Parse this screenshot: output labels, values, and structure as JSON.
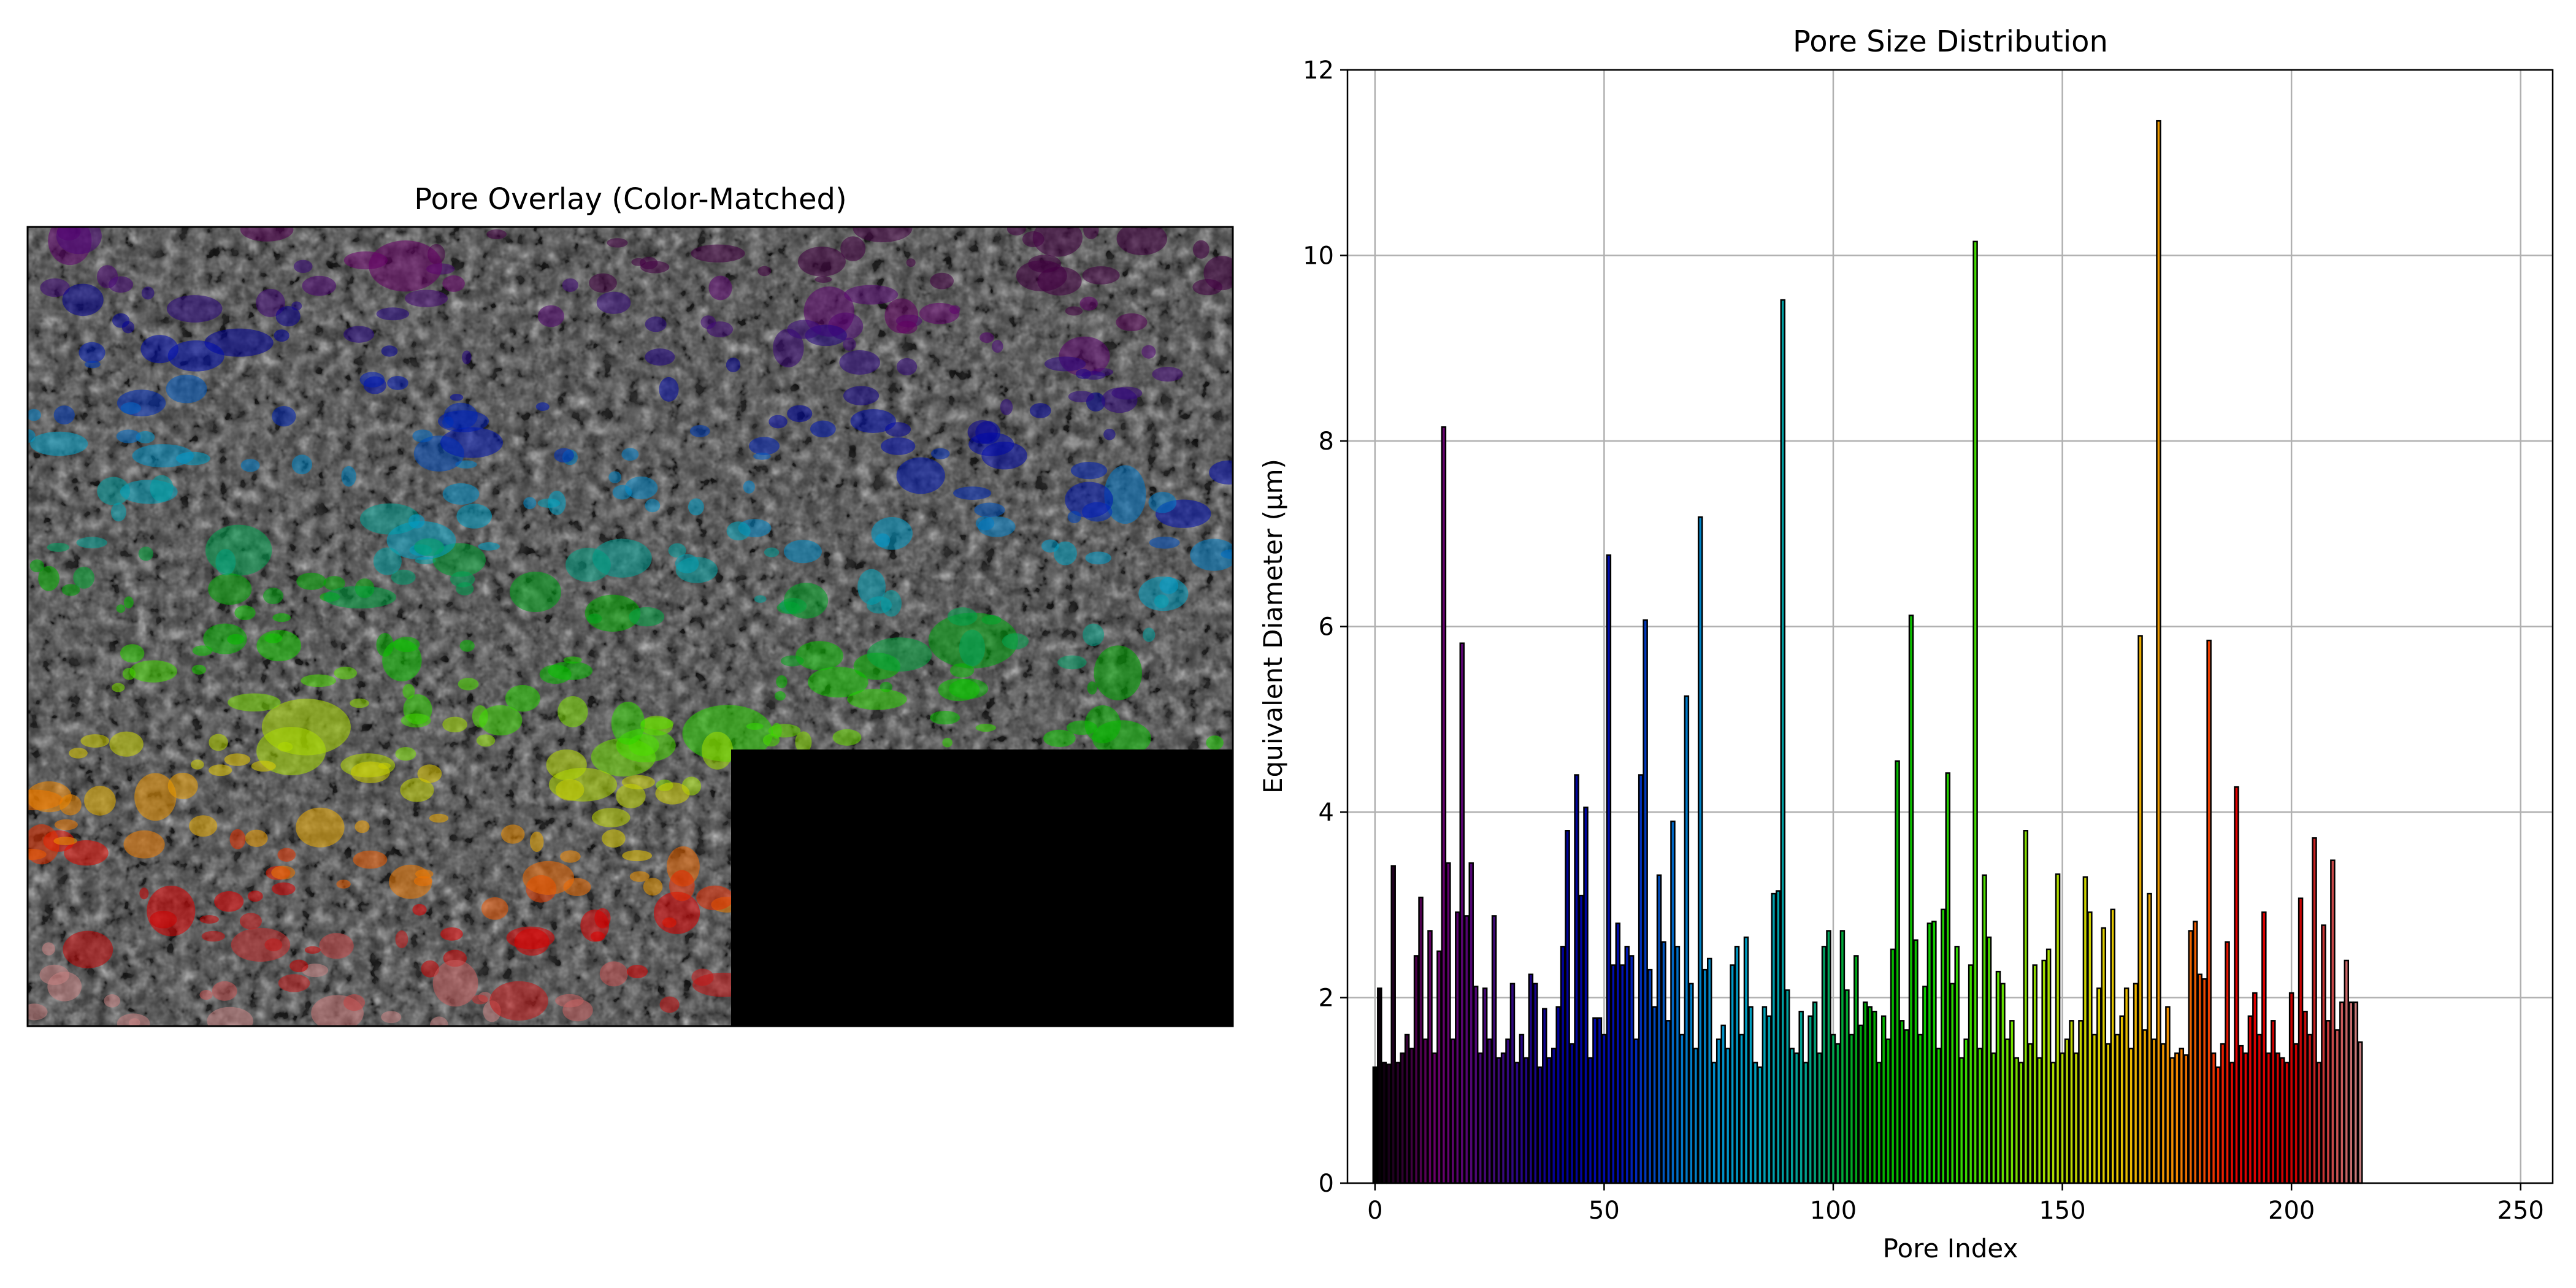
{
  "figure": {
    "left_panel": {
      "title": "Pore Overlay (Color-Matched)"
    },
    "right_panel": {
      "title": "Pore Size Distribution"
    }
  },
  "chart_data": {
    "type": "bar",
    "title": "Pore Size Distribution",
    "xlabel": "Pore Index",
    "ylabel": "Equivalent Diameter (μm)",
    "xlim": [
      -6,
      257
    ],
    "ylim": [
      0,
      12
    ],
    "xticks": [
      0,
      50,
      100,
      150,
      200,
      250
    ],
    "yticks": [
      0,
      2,
      4,
      6,
      8,
      10,
      12
    ],
    "grid": true,
    "bar_edge_color": "#000000",
    "x_start": 0,
    "values": [
      1.25,
      2.1,
      1.3,
      1.28,
      3.42,
      1.3,
      1.4,
      1.6,
      1.45,
      2.45,
      3.08,
      1.55,
      2.72,
      1.4,
      2.5,
      8.15,
      3.45,
      1.55,
      2.92,
      5.82,
      2.88,
      3.45,
      2.12,
      1.4,
      2.1,
      1.55,
      2.88,
      1.35,
      1.4,
      1.55,
      2.15,
      1.3,
      1.6,
      1.35,
      2.25,
      2.15,
      1.25,
      1.88,
      1.35,
      1.45,
      1.9,
      2.55,
      3.8,
      1.5,
      4.4,
      3.1,
      4.05,
      1.35,
      1.78,
      1.78,
      1.6,
      6.77,
      2.35,
      2.8,
      2.35,
      2.55,
      2.45,
      1.55,
      4.4,
      6.07,
      2.3,
      1.9,
      3.32,
      2.6,
      1.75,
      3.9,
      2.55,
      1.6,
      5.25,
      2.15,
      1.45,
      7.18,
      2.3,
      2.42,
      1.3,
      1.55,
      1.7,
      1.45,
      2.35,
      2.55,
      1.6,
      2.65,
      1.9,
      1.3,
      1.25,
      1.9,
      1.8,
      3.12,
      3.15,
      9.52,
      2.08,
      1.45,
      1.4,
      1.85,
      1.3,
      1.8,
      1.95,
      1.4,
      2.55,
      2.72,
      1.6,
      1.5,
      2.72,
      2.08,
      1.6,
      2.45,
      1.7,
      1.95,
      1.9,
      1.85,
      1.3,
      1.8,
      1.55,
      2.52,
      4.55,
      1.75,
      1.65,
      6.12,
      2.62,
      1.6,
      2.12,
      2.8,
      2.82,
      1.45,
      2.95,
      4.42,
      2.15,
      2.55,
      1.35,
      1.55,
      2.35,
      10.15,
      1.45,
      3.32,
      2.65,
      1.4,
      2.28,
      2.15,
      1.55,
      1.75,
      1.35,
      1.3,
      3.8,
      1.5,
      2.35,
      1.35,
      2.4,
      2.52,
      1.3,
      3.33,
      1.4,
      1.55,
      1.75,
      1.4,
      1.75,
      3.3,
      2.92,
      1.6,
      2.1,
      2.75,
      1.5,
      2.95,
      1.6,
      1.8,
      2.1,
      1.45,
      2.15,
      5.9,
      1.65,
      3.12,
      1.55,
      11.45,
      1.5,
      1.9,
      1.35,
      1.4,
      1.45,
      1.38,
      2.72,
      2.82,
      2.25,
      2.2,
      5.85,
      1.4,
      1.25,
      1.5,
      2.6,
      1.3,
      4.27,
      1.48,
      1.4,
      1.8,
      2.05,
      1.6,
      2.92,
      1.4,
      1.75,
      1.4,
      1.35,
      1.3,
      2.05,
      1.5,
      3.07,
      1.85,
      1.6,
      3.72,
      1.3,
      2.78,
      1.75,
      3.48,
      1.65,
      1.95,
      2.4,
      1.95,
      1.95,
      1.52
    ],
    "colormap": [
      "#000000",
      "#6b006b",
      "#3d0a7a",
      "#000096",
      "#000fb4",
      "#0078c8",
      "#00a0c8",
      "#00a08c",
      "#00aa00",
      "#0fcc00",
      "#55e000",
      "#aadc00",
      "#e6c800",
      "#f08700",
      "#e60000",
      "#c80000",
      "#c88282"
    ]
  }
}
